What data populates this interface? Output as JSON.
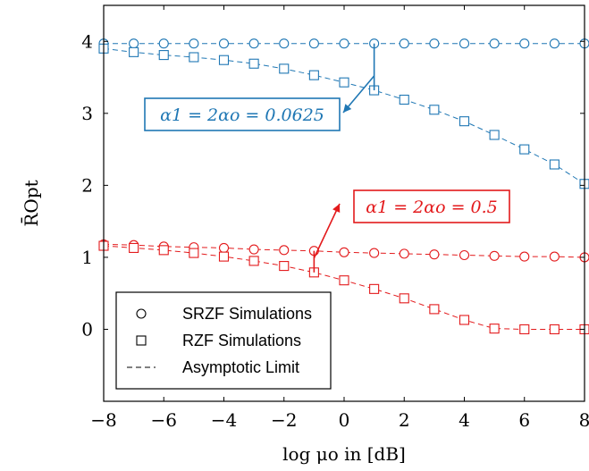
{
  "chart_data": {
    "type": "line",
    "xlabel": "log μo in [dB]",
    "ylabel": "R̄Opt",
    "xlim": [
      -8,
      8
    ],
    "ylim": [
      -1,
      4.5
    ],
    "xticks": [
      -8,
      -6,
      -4,
      -2,
      0,
      2,
      4,
      6,
      8
    ],
    "yticks": [
      0,
      1,
      2,
      3,
      4
    ],
    "x": [
      -8,
      -7,
      -6,
      -5,
      -4,
      -3,
      -2,
      -1,
      0,
      1,
      2,
      3,
      4,
      5,
      6,
      7,
      8
    ],
    "series": [
      {
        "name": "SRZF Simulations",
        "group": "blue",
        "marker": "circle",
        "color": "#1f77b4",
        "values": [
          3.97,
          3.97,
          3.97,
          3.97,
          3.97,
          3.97,
          3.97,
          3.97,
          3.97,
          3.97,
          3.97,
          3.97,
          3.97,
          3.97,
          3.97,
          3.97,
          3.97
        ]
      },
      {
        "name": "RZF Simulations",
        "group": "blue",
        "marker": "square",
        "color": "#1f77b4",
        "values": [
          3.9,
          3.85,
          3.81,
          3.78,
          3.74,
          3.69,
          3.62,
          3.53,
          3.43,
          3.32,
          3.19,
          3.05,
          2.89,
          2.7,
          2.5,
          2.29,
          2.02
        ]
      },
      {
        "name": "SRZF Simulations",
        "group": "red",
        "marker": "circle",
        "color": "#e31a1c",
        "values": [
          1.18,
          1.17,
          1.15,
          1.14,
          1.13,
          1.11,
          1.1,
          1.09,
          1.07,
          1.06,
          1.05,
          1.04,
          1.03,
          1.02,
          1.01,
          1.01,
          1.0
        ]
      },
      {
        "name": "RZF Simulations",
        "group": "red",
        "marker": "square",
        "color": "#e31a1c",
        "values": [
          1.16,
          1.13,
          1.1,
          1.06,
          1.01,
          0.95,
          0.88,
          0.79,
          0.68,
          0.56,
          0.43,
          0.28,
          0.13,
          0.01,
          0.0,
          0.0,
          0.0
        ]
      }
    ],
    "legend": {
      "placement": "bottom-left",
      "entries": [
        {
          "label": "SRZF Simulations",
          "symbol": "circle"
        },
        {
          "label": "RZF Simulations",
          "symbol": "square"
        },
        {
          "label": "Asymptotic Limit",
          "symbol": "dashed-line"
        }
      ]
    },
    "annotations": [
      {
        "text": "α1 = 2αo = 0.0625",
        "color": "#1f77b4",
        "arrow_from": [
          1,
          3.97
        ],
        "arrow_to": [
          1,
          3.32
        ]
      },
      {
        "text": "α1 = 2αo = 0.5",
        "color": "#e31a1c",
        "arrow_from": [
          -1,
          1.09
        ],
        "arrow_to": [
          -1,
          0.79
        ]
      }
    ],
    "grid": false
  }
}
